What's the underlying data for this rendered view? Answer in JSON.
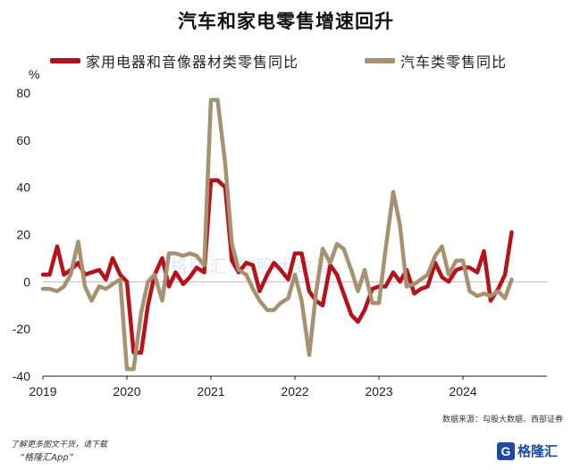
{
  "title": "汽车和家电零售增速回升",
  "colors": {
    "series1": "#b5121b",
    "series2": "#a69270",
    "axis": "#222222",
    "zero_line": "#bbbbbb"
  },
  "chart_data": {
    "type": "line",
    "title": "汽车和家电零售增速回升",
    "ylabel": "%",
    "ylim": [
      -40,
      80
    ],
    "yticks": [
      80,
      60,
      40,
      20,
      0,
      -20,
      -40
    ],
    "xlim": [
      2019.0,
      2025.0
    ],
    "xticks": [
      {
        "value": 2019,
        "label": "2019"
      },
      {
        "value": 2020,
        "label": "2020"
      },
      {
        "value": 2021,
        "label": "2021"
      },
      {
        "value": 2022,
        "label": "2022"
      },
      {
        "value": 2023,
        "label": "2023"
      },
      {
        "value": 2024,
        "label": "2024"
      }
    ],
    "grid": false,
    "legend_position": "top",
    "series": [
      {
        "name": "家用电器和音像器材类零售同比",
        "color": "#b5121b",
        "points": [
          [
            2019.0,
            3
          ],
          [
            2019.08,
            3
          ],
          [
            2019.17,
            15
          ],
          [
            2019.25,
            3
          ],
          [
            2019.33,
            5
          ],
          [
            2019.42,
            8
          ],
          [
            2019.5,
            3
          ],
          [
            2019.58,
            4
          ],
          [
            2019.67,
            5
          ],
          [
            2019.75,
            1
          ],
          [
            2019.83,
            10
          ],
          [
            2019.92,
            3
          ],
          [
            2020.0,
            0
          ],
          [
            2020.08,
            -30
          ],
          [
            2020.17,
            -30
          ],
          [
            2020.25,
            -10
          ],
          [
            2020.33,
            3
          ],
          [
            2020.42,
            10
          ],
          [
            2020.5,
            -2
          ],
          [
            2020.58,
            4
          ],
          [
            2020.67,
            -1
          ],
          [
            2020.75,
            2
          ],
          [
            2020.83,
            6
          ],
          [
            2020.92,
            4
          ],
          [
            2021.0,
            43
          ],
          [
            2021.08,
            43
          ],
          [
            2021.17,
            40
          ],
          [
            2021.25,
            9
          ],
          [
            2021.33,
            4
          ],
          [
            2021.42,
            8
          ],
          [
            2021.5,
            7
          ],
          [
            2021.58,
            -4
          ],
          [
            2021.67,
            3
          ],
          [
            2021.75,
            8
          ],
          [
            2021.83,
            5
          ],
          [
            2021.92,
            1
          ],
          [
            2022.0,
            12
          ],
          [
            2022.08,
            12
          ],
          [
            2022.17,
            -4
          ],
          [
            2022.25,
            -8
          ],
          [
            2022.33,
            -10
          ],
          [
            2022.42,
            7
          ],
          [
            2022.5,
            3
          ],
          [
            2022.58,
            -5
          ],
          [
            2022.67,
            -14
          ],
          [
            2022.75,
            -17
          ],
          [
            2022.83,
            -12
          ],
          [
            2022.92,
            -3
          ],
          [
            2023.0,
            -2
          ],
          [
            2023.08,
            -2
          ],
          [
            2023.17,
            4
          ],
          [
            2023.25,
            0
          ],
          [
            2023.33,
            5
          ],
          [
            2023.42,
            -5
          ],
          [
            2023.5,
            -3
          ],
          [
            2023.58,
            -2
          ],
          [
            2023.67,
            8
          ],
          [
            2023.75,
            2
          ],
          [
            2023.83,
            0
          ],
          [
            2023.92,
            5
          ],
          [
            2024.0,
            6
          ],
          [
            2024.08,
            6
          ],
          [
            2024.17,
            4
          ],
          [
            2024.25,
            13
          ],
          [
            2024.33,
            -8
          ],
          [
            2024.42,
            -3
          ],
          [
            2024.5,
            3
          ],
          [
            2024.58,
            21
          ]
        ]
      },
      {
        "name": "汽车类零售同比",
        "color": "#a69270",
        "points": [
          [
            2019.0,
            -3
          ],
          [
            2019.08,
            -3
          ],
          [
            2019.17,
            -4
          ],
          [
            2019.25,
            -2
          ],
          [
            2019.33,
            3
          ],
          [
            2019.42,
            17
          ],
          [
            2019.5,
            -2
          ],
          [
            2019.58,
            -8
          ],
          [
            2019.67,
            -2
          ],
          [
            2019.75,
            -3
          ],
          [
            2019.83,
            -1
          ],
          [
            2019.92,
            1
          ],
          [
            2020.0,
            -37
          ],
          [
            2020.08,
            -37
          ],
          [
            2020.17,
            -13
          ],
          [
            2020.25,
            0
          ],
          [
            2020.33,
            3
          ],
          [
            2020.42,
            -8
          ],
          [
            2020.5,
            12
          ],
          [
            2020.58,
            12
          ],
          [
            2020.67,
            11
          ],
          [
            2020.75,
            12
          ],
          [
            2020.83,
            11
          ],
          [
            2020.92,
            7
          ],
          [
            2021.0,
            77
          ],
          [
            2021.08,
            77
          ],
          [
            2021.17,
            50
          ],
          [
            2021.25,
            16
          ],
          [
            2021.33,
            5
          ],
          [
            2021.42,
            3
          ],
          [
            2021.5,
            -3
          ],
          [
            2021.58,
            -8
          ],
          [
            2021.67,
            -12
          ],
          [
            2021.75,
            -12
          ],
          [
            2021.83,
            -9
          ],
          [
            2021.92,
            -7
          ],
          [
            2022.0,
            3
          ],
          [
            2022.08,
            -8
          ],
          [
            2022.17,
            -31
          ],
          [
            2022.25,
            -5
          ],
          [
            2022.33,
            14
          ],
          [
            2022.42,
            8
          ],
          [
            2022.5,
            16
          ],
          [
            2022.58,
            14
          ],
          [
            2022.67,
            5
          ],
          [
            2022.75,
            -4
          ],
          [
            2022.83,
            5
          ],
          [
            2022.92,
            -9
          ],
          [
            2023.0,
            -9
          ],
          [
            2023.08,
            14
          ],
          [
            2023.17,
            38
          ],
          [
            2023.25,
            24
          ],
          [
            2023.33,
            -2
          ],
          [
            2023.42,
            -1
          ],
          [
            2023.5,
            1
          ],
          [
            2023.58,
            3
          ],
          [
            2023.67,
            11
          ],
          [
            2023.75,
            15
          ],
          [
            2023.83,
            3
          ],
          [
            2023.92,
            9
          ],
          [
            2024.0,
            9
          ],
          [
            2024.08,
            -4
          ],
          [
            2024.17,
            -6
          ],
          [
            2024.25,
            -5
          ],
          [
            2024.33,
            -6
          ],
          [
            2024.42,
            -4
          ],
          [
            2024.5,
            -7
          ],
          [
            2024.58,
            1
          ]
        ]
      }
    ]
  },
  "source_note": "数据来源：勾股大数据、西部证券",
  "watermark_text": "格隆汇  勾股大数据",
  "footer": {
    "line1": "了解更多图文干货，请下载",
    "line2": "“格隆汇App”"
  },
  "logo": {
    "icon": "G",
    "name": "格隆汇",
    "icon_semantic": "gelonghui-logo-icon"
  }
}
